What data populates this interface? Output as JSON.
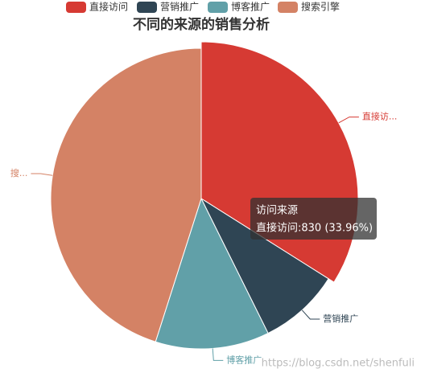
{
  "chart_data": {
    "type": "pie",
    "title": "不同的来源的销售分析",
    "series_name": "访问来源",
    "categories": [
      "直接访问",
      "营销推广",
      "博客推广",
      "搜索引擎"
    ],
    "values": [
      830,
      213,
      299,
      1102
    ],
    "colors": [
      "#d63a33",
      "#2f4554",
      "#61a0a8",
      "#d48265"
    ],
    "slice_labels": [
      "直接访...",
      "营销推广",
      "博客推广",
      "搜..."
    ],
    "tooltip": {
      "title": "访问来源",
      "text": "直接访问:830 (33.96%)"
    },
    "watermark": "https://blog.csdn.net/shenfuli"
  }
}
